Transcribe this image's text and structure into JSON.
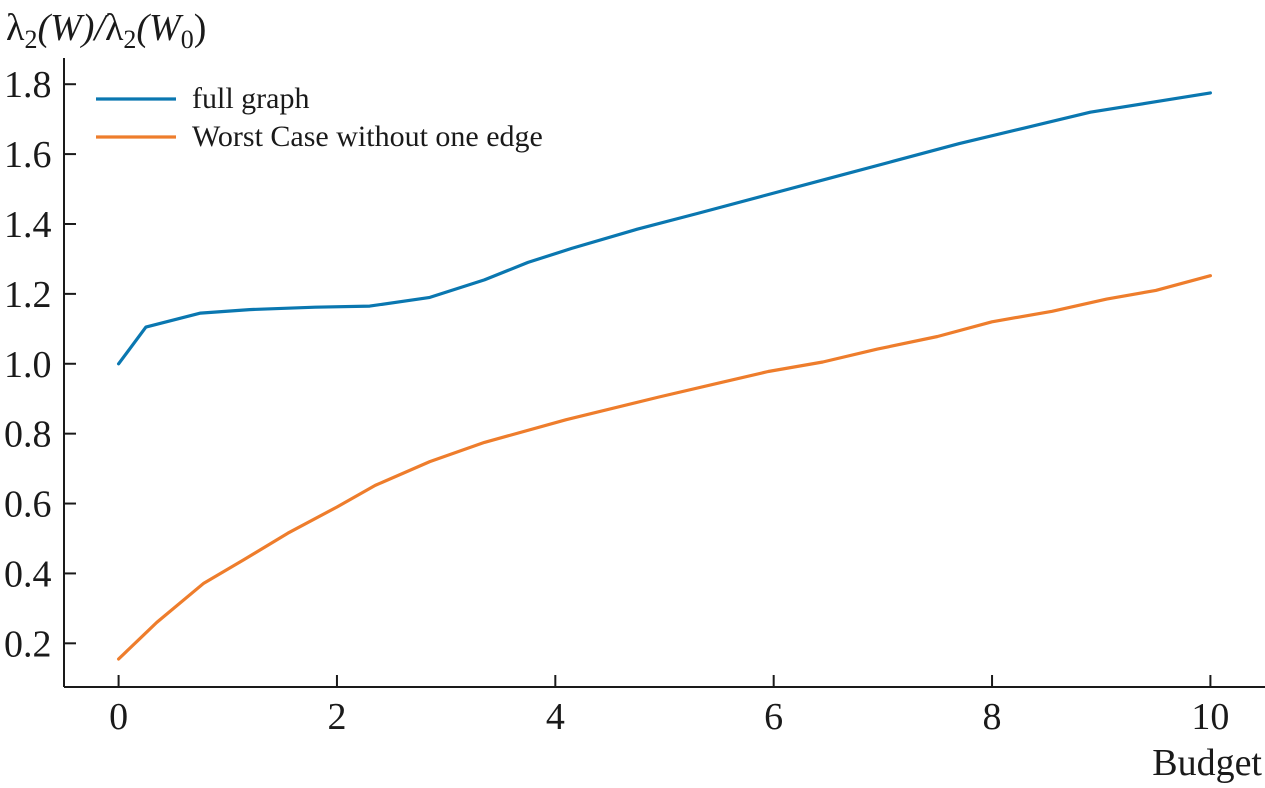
{
  "chart_data": {
    "type": "line",
    "title": "",
    "xlabel": "Budget",
    "ylabel": "λ₂(W)/λ₂(W₀)",
    "ylabel_parts": {
      "lambda": "λ",
      "sub2": "2",
      "open_w": "(W)/",
      "open_w0": "(W",
      "sub0": "0",
      "close": ")"
    },
    "xlim": [
      -0.5,
      10.5
    ],
    "ylim": [
      0.075,
      1.875
    ],
    "x_ticks": [
      0,
      2,
      4,
      6,
      8,
      10
    ],
    "x_tick_labels": [
      "0",
      "2",
      "4",
      "6",
      "8",
      "10"
    ],
    "y_ticks": [
      0.2,
      0.4,
      0.6,
      0.8,
      1.0,
      1.2,
      1.4,
      1.6,
      1.8
    ],
    "y_tick_labels": [
      "0.2",
      "0.4",
      "0.6",
      "0.8",
      "1.0",
      "1.2",
      "1.4",
      "1.6",
      "1.8"
    ],
    "grid": false,
    "legend_position": "top-left",
    "series": [
      {
        "name": "full graph",
        "color": "#0a77b0",
        "x": [
          0,
          0.25,
          0.75,
          1.2,
          1.8,
          2.3,
          2.85,
          3.35,
          3.75,
          4.15,
          4.75,
          5.3,
          5.9,
          6.5,
          7.1,
          7.7,
          8.3,
          8.9,
          9.5,
          10
        ],
        "y": [
          1.0,
          1.105,
          1.145,
          1.155,
          1.162,
          1.165,
          1.19,
          1.24,
          1.29,
          1.33,
          1.385,
          1.43,
          1.48,
          1.53,
          1.58,
          1.63,
          1.675,
          1.72,
          1.75,
          1.775
        ]
      },
      {
        "name": "Worst Case without one edge",
        "color": "#ee7d2c",
        "x": [
          0,
          0.35,
          0.78,
          1.15,
          1.55,
          2.0,
          2.35,
          2.85,
          3.35,
          4.1,
          4.95,
          5.95,
          6.45,
          6.95,
          7.5,
          8.0,
          8.55,
          9.05,
          9.5,
          10
        ],
        "y": [
          0.155,
          0.26,
          0.372,
          0.44,
          0.515,
          0.59,
          0.652,
          0.72,
          0.775,
          0.84,
          0.905,
          0.978,
          1.005,
          1.042,
          1.078,
          1.12,
          1.15,
          1.185,
          1.21,
          1.252
        ]
      }
    ]
  }
}
